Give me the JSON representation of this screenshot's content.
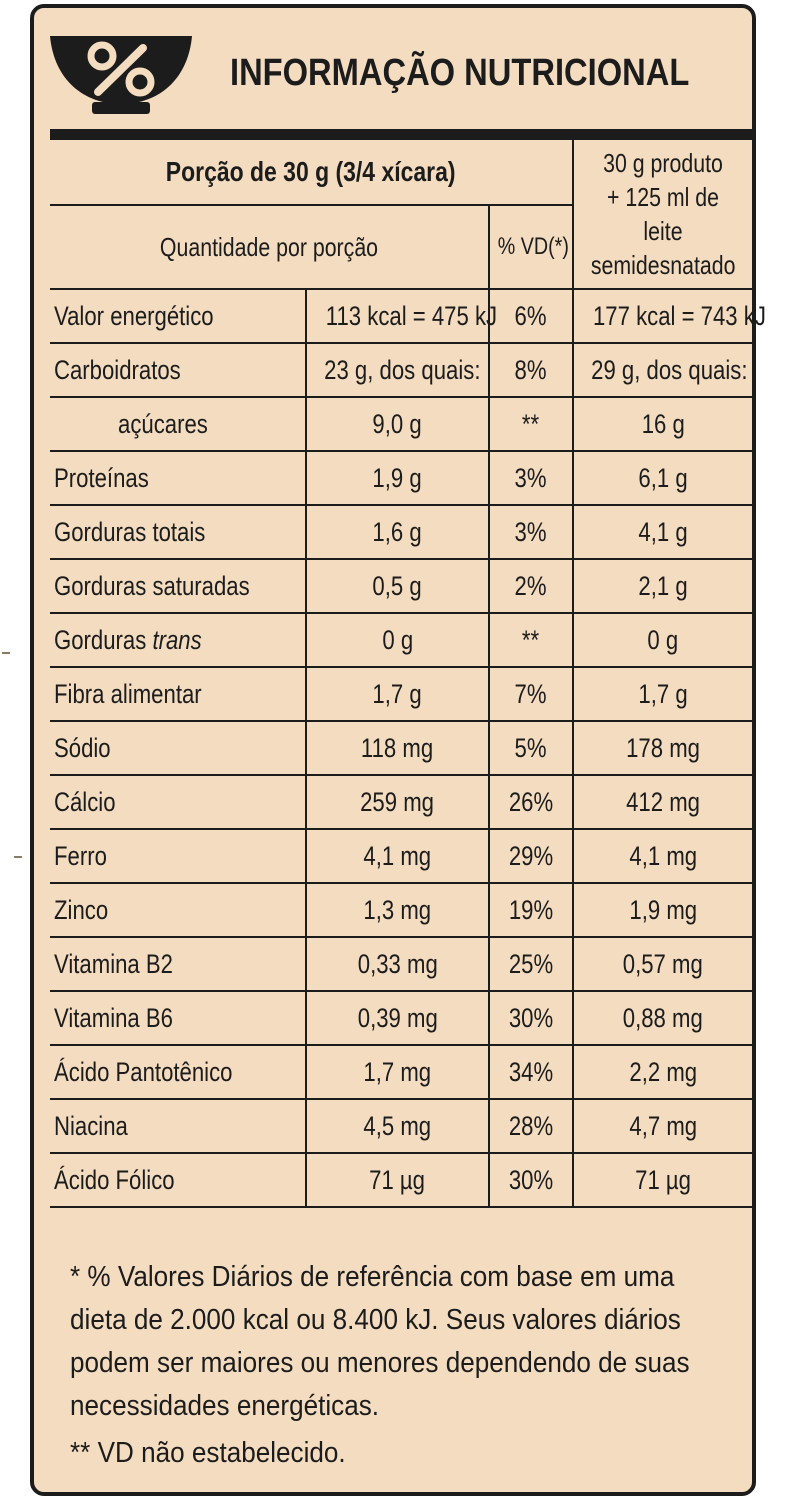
{
  "header": {
    "icon": "percent-bowl-icon",
    "title": "INFORMAÇÃO NUTRICIONAL"
  },
  "table": {
    "portion_label": "Porção de 30 g (3/4 xícara)",
    "qty_label": "Quantidade por porção",
    "pct_label": "% VD(*)",
    "milk_label_lines": [
      "30 g produto",
      "+ 125 ml de leite",
      "semidesnatado"
    ],
    "rows": [
      {
        "name": "Valor energético",
        "amount": "113 kcal = 475 kJ",
        "pct": "6%",
        "milk": "177 kcal = 743 kJ"
      },
      {
        "name": "Carboidratos",
        "amount": "23 g, dos quais:",
        "pct": "8%",
        "milk": "29 g, dos quais:"
      },
      {
        "name": "açúcares",
        "amount": "9,0 g",
        "pct": "**",
        "milk": "16 g"
      },
      {
        "name": "Proteínas",
        "amount": "1,9 g",
        "pct": "3%",
        "milk": "6,1 g"
      },
      {
        "name": "Gorduras totais",
        "amount": "1,6 g",
        "pct": "3%",
        "milk": "4,1 g"
      },
      {
        "name": "Gorduras saturadas",
        "amount": "0,5 g",
        "pct": "2%",
        "milk": "2,1 g"
      },
      {
        "name": "Gorduras",
        "name_italic": "trans",
        "amount": "0 g",
        "pct": "**",
        "milk": "0 g"
      },
      {
        "name": "Fibra alimentar",
        "amount": "1,7 g",
        "pct": "7%",
        "milk": "1,7 g"
      },
      {
        "name": "Sódio",
        "amount": "118 mg",
        "pct": "5%",
        "milk": "178 mg"
      },
      {
        "name": "Cálcio",
        "amount": "259 mg",
        "pct": "26%",
        "milk": "412 mg"
      },
      {
        "name": "Ferro",
        "amount": "4,1 mg",
        "pct": "29%",
        "milk": "4,1 mg"
      },
      {
        "name": "Zinco",
        "amount": "1,3 mg",
        "pct": "19%",
        "milk": "1,9 mg"
      },
      {
        "name": "Vitamina B2",
        "amount": "0,33 mg",
        "pct": "25%",
        "milk": "0,57 mg"
      },
      {
        "name": "Vitamina B6",
        "amount": "0,39 mg",
        "pct": "30%",
        "milk": "0,88 mg"
      },
      {
        "name": "Ácido Pantotênico",
        "amount": "1,7 mg",
        "pct": "34%",
        "milk": "2,2 mg"
      },
      {
        "name": "Niacina",
        "amount": "4,5 mg",
        "pct": "28%",
        "milk": "4,7 mg"
      },
      {
        "name": "Ácido Fólico",
        "amount": "71 µg",
        "pct": "30%",
        "milk": "71 µg"
      }
    ]
  },
  "footnotes": {
    "vd_lines": [
      "* % Valores Diários de referência com base em uma",
      "dieta de 2.000 kcal ou 8.400 kJ. Seus valores diários",
      "podem ser maiores ou menores dependendo de suas",
      "necessidades energéticas."
    ],
    "not_established": "** VD não estabelecido."
  },
  "colors": {
    "panel_background": "#f3dcc0",
    "ink": "#1c1c1c"
  }
}
